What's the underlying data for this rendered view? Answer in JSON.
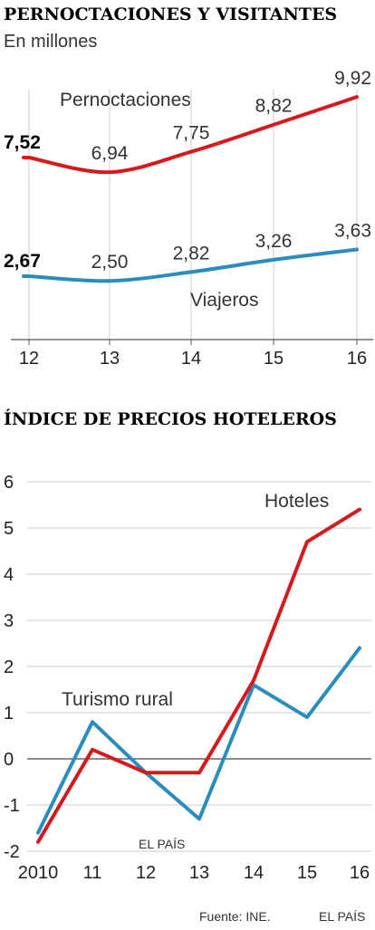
{
  "chart_data": [
    {
      "type": "line",
      "title": "PERNOCTACIONES Y VISITANTES",
      "subtitle": "En millones",
      "x": [
        "12",
        "13",
        "14",
        "15",
        "16"
      ],
      "series": [
        {
          "name": "Pernoctaciones",
          "values": [
            7.52,
            6.94,
            7.75,
            8.82,
            9.92
          ],
          "labels": [
            "7,52",
            "6,94",
            "7,75",
            "8,82",
            "9,92"
          ],
          "color": "#d7191c"
        },
        {
          "name": "Viajeros",
          "values": [
            2.67,
            2.5,
            2.82,
            3.26,
            3.63
          ],
          "labels": [
            "2,67",
            "2,50",
            "2,82",
            "3,26",
            "3,63"
          ],
          "color": "#2b8cbe"
        }
      ],
      "grid": true
    },
    {
      "type": "line",
      "title": "ÍNDICE DE PRECIOS HOTELEROS",
      "x": [
        "2010",
        "11",
        "12",
        "13",
        "14",
        "15",
        "16"
      ],
      "yticks": [
        "6",
        "5",
        "4",
        "3",
        "2",
        "1",
        "0",
        "-1",
        "-2"
      ],
      "ylim": [
        -2,
        6
      ],
      "series": [
        {
          "name": "Hoteles",
          "values": [
            -1.8,
            0.2,
            -0.3,
            -0.3,
            1.7,
            4.7,
            5.4
          ],
          "color": "#d7191c"
        },
        {
          "name": "Turismo rural",
          "values": [
            -1.6,
            0.8,
            -0.3,
            -1.3,
            1.6,
            0.9,
            2.4
          ],
          "color": "#2b8cbe"
        }
      ],
      "grid": true,
      "watermark": "EL PAÍS"
    }
  ],
  "footer": {
    "source": "Fuente: INE.",
    "brand": "EL PAÍS"
  }
}
